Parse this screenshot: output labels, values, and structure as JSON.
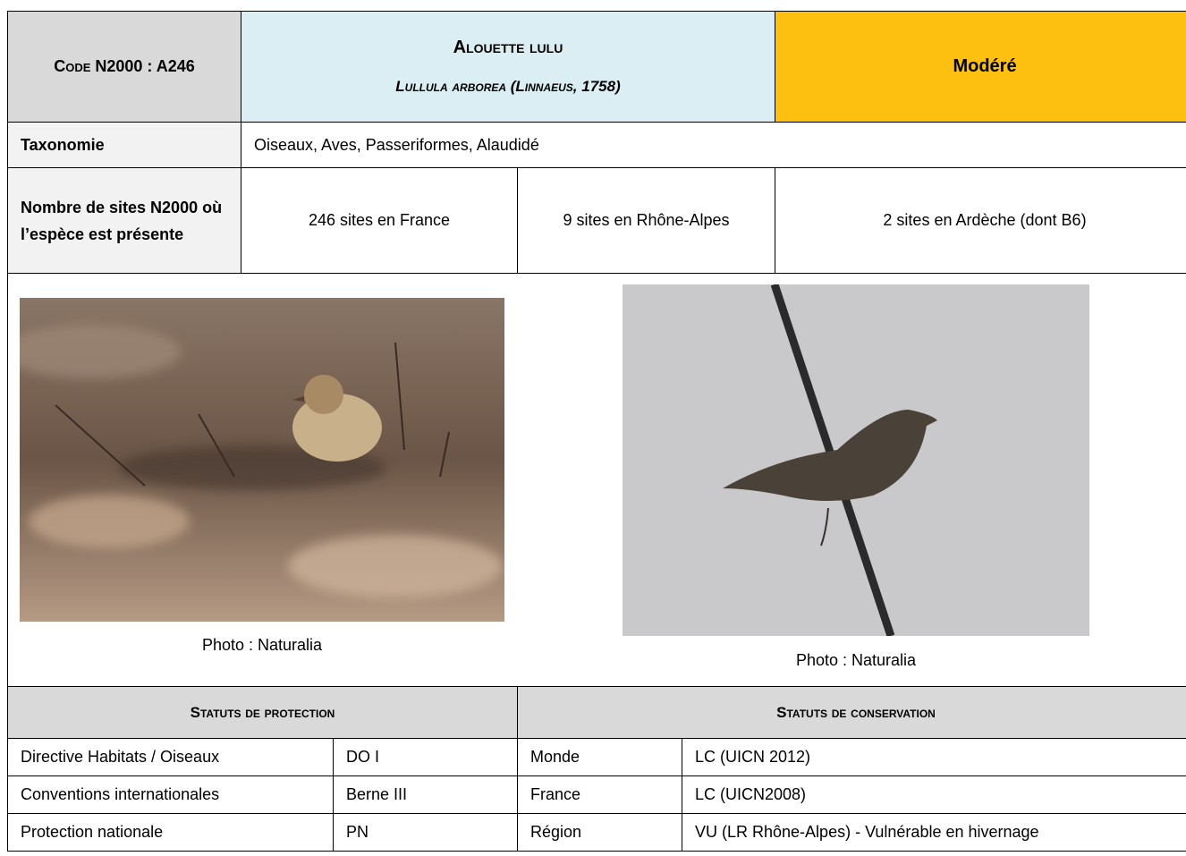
{
  "header": {
    "code": "Code N2000 : A246",
    "name": "Alouette lulu",
    "latin": "Lullula arborea (Linnaeus, 1758)",
    "level": "Modéré"
  },
  "taxonomy": {
    "label": "Taxonomie",
    "value": "Oiseaux, Aves, Passeriformes, Alaudidé"
  },
  "sites": {
    "label": "Nombre de sites N2000 où l’espèce est présente",
    "values": [
      "246 sites en France",
      "9 sites en Rhône-Alpes",
      "2 sites en Ardèche (dont B6)"
    ]
  },
  "photos": [
    {
      "caption": "Photo : Naturalia"
    },
    {
      "caption": "Photo : Naturalia"
    }
  ],
  "status": {
    "protection": {
      "title": "Statuts de protection",
      "rows": [
        [
          "Directive Habitats / Oiseaux",
          "DO I"
        ],
        [
          "Conventions internationales",
          "Berne III"
        ],
        [
          "Protection nationale",
          "PN"
        ]
      ]
    },
    "conservation": {
      "title": "Statuts de conservation",
      "rows": [
        [
          "Monde",
          "LC (UICN 2012)"
        ],
        [
          "France",
          "LC (UICN2008)"
        ],
        [
          "Région",
          "VU (LR Rhône-Alpes) - Vulnérable en hivernage"
        ]
      ]
    }
  }
}
